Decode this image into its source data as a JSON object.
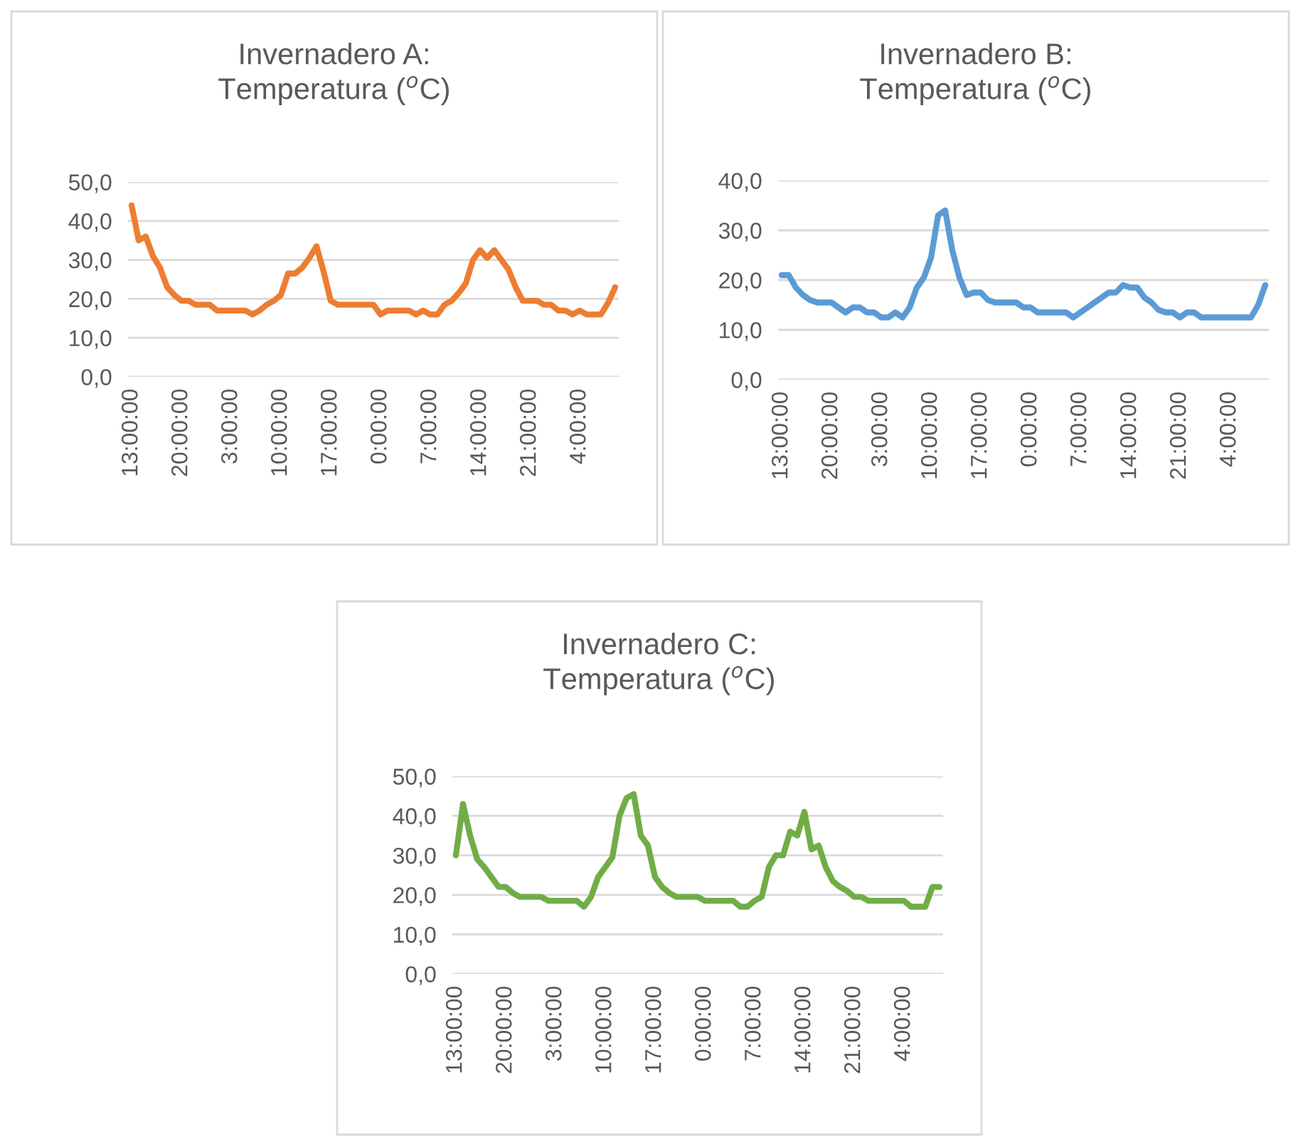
{
  "chart_data": [
    {
      "type": "line",
      "title": "Invernadero A:\nTemperatura ($^{o}$C)",
      "categories": [
        "13:00:00",
        null,
        null,
        null,
        null,
        null,
        null,
        "20:00:00",
        null,
        null,
        null,
        null,
        null,
        null,
        "3:00:00",
        null,
        null,
        null,
        null,
        null,
        null,
        "10:00:00",
        null,
        null,
        null,
        null,
        null,
        null,
        "17:00:00",
        null,
        null,
        null,
        null,
        null,
        null,
        "0:00:00",
        null,
        null,
        null,
        null,
        null,
        null,
        "7:00:00",
        null,
        null,
        null,
        null,
        null,
        null,
        "14:00:00",
        null,
        null,
        null,
        null,
        null,
        null,
        "21:00:00",
        null,
        null,
        null,
        null,
        null,
        null,
        "4:00:00",
        null,
        null,
        null,
        null,
        null
      ],
      "series": [
        {
          "color": "#ed7d31",
          "values": [
            44,
            35,
            36,
            31,
            28,
            23,
            21,
            19.5,
            19.5,
            18.5,
            18.5,
            18.5,
            17,
            17,
            17,
            17,
            17,
            16,
            17,
            18.5,
            19.5,
            21,
            26.5,
            26.5,
            28,
            30.5,
            33.5,
            27,
            19.5,
            18.5,
            18.5,
            18.5,
            18.5,
            18.5,
            18.5,
            16,
            17,
            17,
            17,
            17,
            16,
            17,
            16,
            16,
            18.5,
            19.5,
            21.5,
            24,
            30,
            32.5,
            30.5,
            32.5,
            30,
            27.5,
            23,
            19.5,
            19.5,
            19.5,
            18.5,
            18.5,
            17,
            17,
            16,
            17,
            16,
            16,
            16,
            19,
            23
          ]
        }
      ],
      "ylim": [
        0,
        50
      ],
      "yticks": [
        {
          "value": 0,
          "label": "0,0"
        },
        {
          "value": 10,
          "label": "10,0"
        },
        {
          "value": 20,
          "label": "20,0"
        },
        {
          "value": 30,
          "label": "30,0"
        },
        {
          "value": 40,
          "label": "40,0"
        },
        {
          "value": 50,
          "label": "50,0"
        }
      ],
      "grid": "y"
    },
    {
      "type": "line",
      "title": "Invernadero B:\nTemperatura ($^{o}$C)",
      "categories": [
        "13:00:00",
        null,
        null,
        null,
        null,
        null,
        null,
        "20:00:00",
        null,
        null,
        null,
        null,
        null,
        null,
        "3:00:00",
        null,
        null,
        null,
        null,
        null,
        null,
        "10:00:00",
        null,
        null,
        null,
        null,
        null,
        null,
        "17:00:00",
        null,
        null,
        null,
        null,
        null,
        null,
        "0:00:00",
        null,
        null,
        null,
        null,
        null,
        null,
        "7:00:00",
        null,
        null,
        null,
        null,
        null,
        null,
        "14:00:00",
        null,
        null,
        null,
        null,
        null,
        null,
        "21:00:00",
        null,
        null,
        null,
        null,
        null,
        null,
        "4:00:00",
        null,
        null,
        null,
        null,
        null
      ],
      "series": [
        {
          "color": "#5b9bd5",
          "values": [
            21,
            21,
            18.5,
            17,
            16,
            15.5,
            15.5,
            15.5,
            14.5,
            13.5,
            14.5,
            14.5,
            13.5,
            13.5,
            12.5,
            12.5,
            13.5,
            12.5,
            14.5,
            18.5,
            20.5,
            24.5,
            33,
            34,
            26,
            20.5,
            17,
            17.5,
            17.5,
            16,
            15.5,
            15.5,
            15.5,
            15.5,
            14.5,
            14.5,
            13.5,
            13.5,
            13.5,
            13.5,
            13.5,
            12.5,
            13.5,
            14.5,
            15.5,
            16.5,
            17.5,
            17.5,
            19,
            18.5,
            18.5,
            16.5,
            15.5,
            14,
            13.5,
            13.5,
            12.5,
            13.5,
            13.5,
            12.5,
            12.5,
            12.5,
            12.5,
            12.5,
            12.5,
            12.5,
            12.5,
            15,
            19
          ]
        }
      ],
      "ylim": [
        0,
        40
      ],
      "yticks": [
        {
          "value": 0,
          "label": "0,0"
        },
        {
          "value": 10,
          "label": "10,0"
        },
        {
          "value": 20,
          "label": "20,0"
        },
        {
          "value": 30,
          "label": "30,0"
        },
        {
          "value": 40,
          "label": "40,0"
        }
      ],
      "grid": "y"
    },
    {
      "type": "line",
      "title": "Invernadero C:\nTemperatura ($^{o}$C)",
      "categories": [
        "13:00:00",
        null,
        null,
        null,
        null,
        null,
        null,
        "20:00:00",
        null,
        null,
        null,
        null,
        null,
        null,
        "3:00:00",
        null,
        null,
        null,
        null,
        null,
        null,
        "10:00:00",
        null,
        null,
        null,
        null,
        null,
        null,
        "17:00:00",
        null,
        null,
        null,
        null,
        null,
        null,
        "0:00:00",
        null,
        null,
        null,
        null,
        null,
        null,
        "7:00:00",
        null,
        null,
        null,
        null,
        null,
        null,
        "14:00:00",
        null,
        null,
        null,
        null,
        null,
        null,
        "21:00:00",
        null,
        null,
        null,
        null,
        null,
        null,
        "4:00:00",
        null,
        null,
        null,
        null,
        null
      ],
      "series": [
        {
          "color": "#70ad47",
          "values": [
            30,
            43,
            35,
            29,
            27,
            24.5,
            22,
            22,
            20.5,
            19.5,
            19.5,
            19.5,
            19.5,
            18.5,
            18.5,
            18.5,
            18.5,
            18.5,
            17,
            19.5,
            24.5,
            27,
            29.5,
            40,
            44.5,
            45.5,
            35,
            32.5,
            24.5,
            22,
            20.5,
            19.5,
            19.5,
            19.5,
            19.5,
            18.5,
            18.5,
            18.5,
            18.5,
            18.5,
            17,
            17,
            18.5,
            19.5,
            27,
            30,
            30,
            36,
            35,
            41,
            31.5,
            32.5,
            27,
            23.5,
            22,
            21,
            19.5,
            19.5,
            18.5,
            18.5,
            18.5,
            18.5,
            18.5,
            18.5,
            17,
            17,
            17,
            22,
            22
          ]
        }
      ],
      "ylim": [
        0,
        50
      ],
      "yticks": [
        {
          "value": 0,
          "label": "0,0"
        },
        {
          "value": 10,
          "label": "10,0"
        },
        {
          "value": 20,
          "label": "20,0"
        },
        {
          "value": 30,
          "label": "30,0"
        },
        {
          "value": 40,
          "label": "40,0"
        },
        {
          "value": 50,
          "label": "50,0"
        }
      ],
      "grid": "y"
    }
  ]
}
